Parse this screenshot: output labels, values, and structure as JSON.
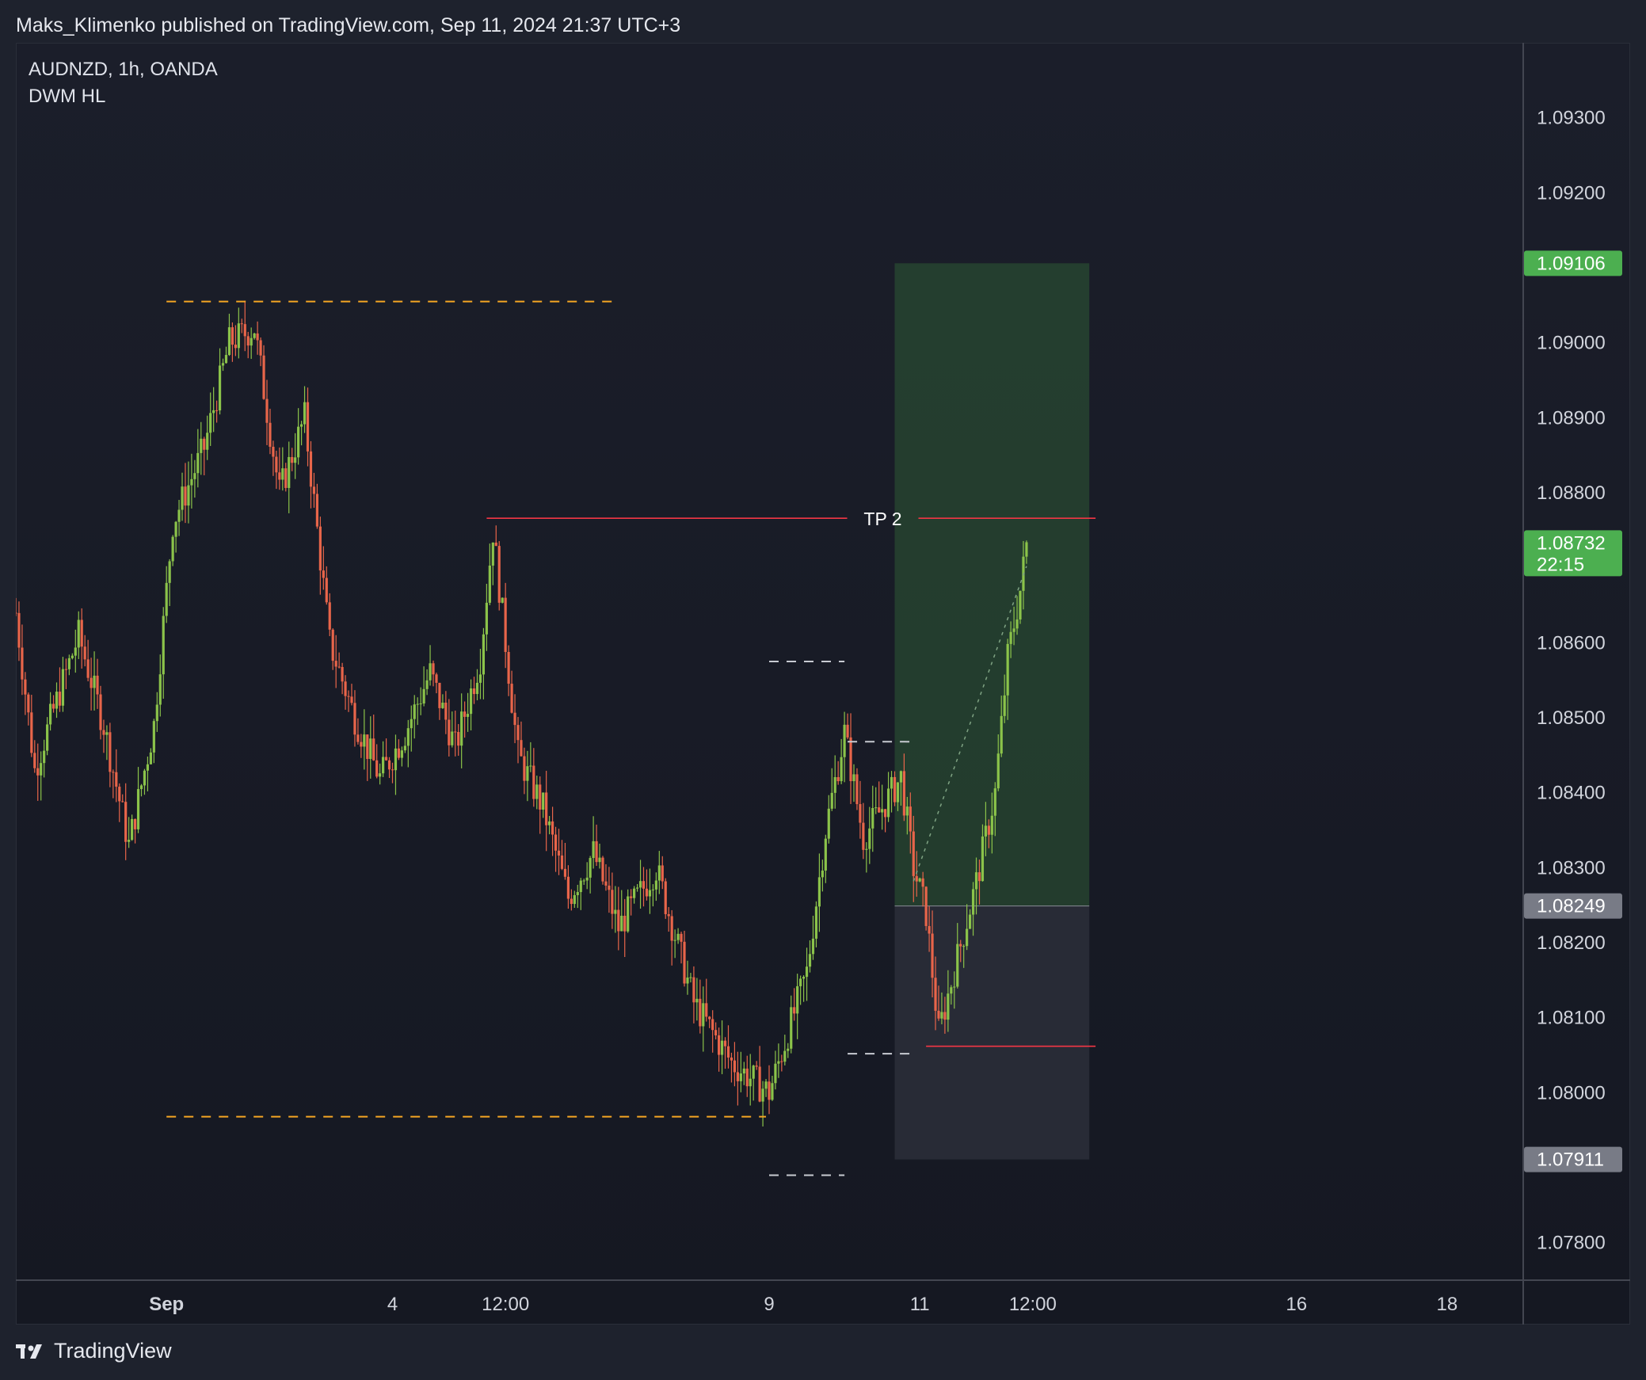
{
  "header": {
    "published_by": "Maks_Klimenko published on TradingView.com, Sep 11, 2024 21:37 UTC+3"
  },
  "legend": {
    "symbol": "AUDNZD, 1h, OANDA",
    "indicator": "DWM HL"
  },
  "footer": {
    "brand": "TradingView",
    "logo_icon": "tradingview-logo-icon"
  },
  "colors": {
    "up_candle": "#8bc34a",
    "down_candle": "#e8654a",
    "level_line": "#f5a623",
    "swing_line": "#c8cbd2",
    "tp_line": "#f23645",
    "profit_zone": "#2e5a35",
    "loss_zone": "#2a2d39",
    "last_price_tag": "#4caf50",
    "entry_tag": "#787b86"
  },
  "chart_data": {
    "type": "candlestick",
    "ylim": [
      1.0775,
      1.094
    ],
    "xlim": [
      "2024-08-30 00:00",
      "2024-09-19 00:00"
    ],
    "y_ticks": [
      "1.09300",
      "1.09200",
      "1.09000",
      "1.08900",
      "1.08800",
      "1.08600",
      "1.08500",
      "1.08400",
      "1.08300",
      "1.08200",
      "1.08100",
      "1.08000",
      "1.07800"
    ],
    "y_tick_values": [
      1.093,
      1.092,
      1.09,
      1.089,
      1.088,
      1.086,
      1.085,
      1.084,
      1.083,
      1.082,
      1.081,
      1.08,
      1.078
    ],
    "x_ticks": [
      {
        "label": "Sep",
        "t": "2024-09-01 00:00"
      },
      {
        "label": "4",
        "t": "2024-09-04 00:00"
      },
      {
        "label": "12:00",
        "t": "2024-09-05 12:00"
      },
      {
        "label": "9",
        "t": "2024-09-09 00:00"
      },
      {
        "label": "11",
        "t": "2024-09-11 00:00"
      },
      {
        "label": "12:00",
        "t": "2024-09-12 12:00"
      },
      {
        "label": "16",
        "t": "2024-09-16 00:00"
      },
      {
        "label": "18",
        "t": "2024-09-18 00:00"
      }
    ],
    "price_path": [
      [
        "2024-08-30 00:00",
        1.0864
      ],
      [
        "2024-08-30 06:00",
        1.0843
      ],
      [
        "2024-08-30 12:00",
        1.0851
      ],
      [
        "2024-08-30 20:00",
        1.0861
      ],
      [
        "2024-08-31 04:00",
        1.0849
      ],
      [
        "2024-08-31 12:00",
        1.0833
      ],
      [
        "2024-08-31 20:00",
        1.0849
      ],
      [
        "2024-09-01 02:00",
        1.0876
      ],
      [
        "2024-09-01 12:00",
        1.0886
      ],
      [
        "2024-09-01 20:00",
        1.09
      ],
      [
        "2024-09-02 04:00",
        1.0902
      ],
      [
        "2024-09-02 12:00",
        1.088
      ],
      [
        "2024-09-02 20:00",
        1.089
      ],
      [
        "2024-09-03 04:00",
        1.086
      ],
      [
        "2024-09-03 12:00",
        1.085
      ],
      [
        "2024-09-03 20:00",
        1.0842
      ],
      [
        "2024-09-04 04:00",
        1.0848
      ],
      [
        "2024-09-04 12:00",
        1.0856
      ],
      [
        "2024-09-04 20:00",
        1.0846
      ],
      [
        "2024-09-05 04:00",
        1.0858
      ],
      [
        "2024-09-05 08:00",
        1.0875
      ],
      [
        "2024-09-05 16:00",
        1.0845
      ],
      [
        "2024-09-06 00:00",
        1.0838
      ],
      [
        "2024-09-06 08:00",
        1.0826
      ],
      [
        "2024-09-06 16:00",
        1.0832
      ],
      [
        "2024-09-07 00:00",
        1.0822
      ],
      [
        "2024-09-07 12:00",
        1.083
      ],
      [
        "2024-09-08 00:00",
        1.0812
      ],
      [
        "2024-09-08 12:00",
        1.0804
      ],
      [
        "2024-09-09 00:00",
        1.08
      ],
      [
        "2024-09-09 12:00",
        1.0816
      ],
      [
        "2024-09-09 18:00",
        1.0835
      ],
      [
        "2024-09-10 00:00",
        1.0848
      ],
      [
        "2024-09-10 06:00",
        1.0834
      ],
      [
        "2024-09-10 12:00",
        1.0838
      ],
      [
        "2024-09-10 18:00",
        1.0842
      ],
      [
        "2024-09-10 22:00",
        1.083
      ],
      [
        "2024-09-11 02:00",
        1.0824
      ],
      [
        "2024-09-11 06:00",
        1.0808
      ],
      [
        "2024-09-11 12:00",
        1.0818
      ],
      [
        "2024-09-11 18:00",
        1.0828
      ],
      [
        "2024-09-12 00:00",
        1.084
      ],
      [
        "2024-09-12 04:00",
        1.0858
      ],
      [
        "2024-09-12 08:00",
        1.0867
      ],
      [
        "2024-09-12 10:00",
        1.0873
      ]
    ],
    "levels": {
      "weekly_high": {
        "price": 1.09055,
        "from": "2024-09-01 00:00",
        "to": "2024-09-07 00:00"
      },
      "weekly_low": {
        "price": 1.07968,
        "from": "2024-09-01 00:00",
        "to": "2024-09-08 23:00"
      },
      "swing_high_1": {
        "price": 1.08575,
        "from": "2024-09-09 00:00",
        "to": "2024-09-10 00:00"
      },
      "swing_low_1": {
        "price": 1.0789,
        "from": "2024-09-09 00:00",
        "to": "2024-09-10 00:00"
      },
      "swing_high_2": {
        "price": 1.08468,
        "from": "2024-09-10 01:00",
        "to": "2024-09-10 22:00"
      },
      "swing_low_2": {
        "price": 1.08052,
        "from": "2024-09-10 01:00",
        "to": "2024-09-10 22:00"
      }
    },
    "tp_line": {
      "label": "TP 2",
      "price": 1.08766,
      "from": "2024-09-05 06:00",
      "to": "2024-09-13 08:00"
    },
    "stop_line": {
      "price": 1.08062,
      "from": "2024-09-11 02:00",
      "to": "2024-09-13 08:00"
    },
    "position": {
      "type": "long",
      "entry": 1.08249,
      "target": 1.09106,
      "stop": 1.07911,
      "from": "2024-09-10 16:00",
      "to": "2024-09-13 06:00"
    },
    "price_tags": [
      {
        "value": "1.09106",
        "kind": "target"
      },
      {
        "value": "1.08732",
        "kind": "last",
        "countdown": "22:15"
      },
      {
        "value": "1.08249",
        "kind": "entry"
      },
      {
        "value": "1.07911",
        "kind": "stop"
      }
    ]
  }
}
